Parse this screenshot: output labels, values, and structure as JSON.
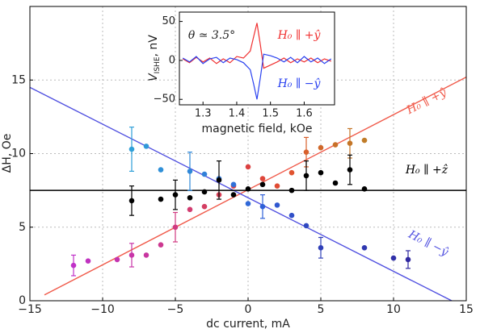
{
  "chart_data": [
    {
      "type": "scatter",
      "xlabel": "dc current, mA",
      "ylabel": "ΔH, Oe",
      "xlim": [
        -15,
        15
      ],
      "ylim": [
        0,
        20
      ],
      "xticks": [
        {
          "value": -15,
          "label": "−15"
        },
        {
          "value": -10,
          "label": "−10"
        },
        {
          "value": -5,
          "label": "−5"
        },
        0,
        5,
        10,
        15
      ],
      "yticks": [
        0,
        5,
        10,
        15
      ],
      "grid": true,
      "series": [
        {
          "name": "H₀ ∥ +ŷ",
          "color": "#f05a4a",
          "x": [
            -12,
            -11,
            -9,
            -8,
            -7,
            -6,
            -5,
            -4,
            -3,
            -2,
            -1,
            0,
            1,
            2,
            3,
            4,
            5,
            6,
            7,
            8
          ],
          "values": [
            2.4,
            2.7,
            2.8,
            3.1,
            3.1,
            3.8,
            5.0,
            6.2,
            6.4,
            7.2,
            7.8,
            9.1,
            8.3,
            7.8,
            8.7,
            10.1,
            10.4,
            10.6,
            10.7,
            10.9
          ],
          "errors": [
            0.7,
            null,
            null,
            0.8,
            null,
            null,
            1.0,
            null,
            null,
            null,
            null,
            null,
            null,
            null,
            null,
            1.0,
            null,
            null,
            1.0,
            null
          ],
          "colors": [
            "#c030c8",
            "#c032c0",
            "#c434b0",
            "#c835a8",
            "#c836a0",
            "#cc3890",
            "#d03a80",
            "#d23c70",
            "#d43e62",
            "#d84058",
            "#da424c",
            "#dc4040",
            "#de463a",
            "#e04c34",
            "#e05430",
            "#d8602c",
            "#d0682a",
            "#c87028",
            "#c47628",
            "#c07c28"
          ],
          "fit": {
            "x": [
              -14,
              15
            ],
            "values": [
              0.4,
              15.2
            ]
          }
        },
        {
          "name": "H₀ ∥ −ŷ",
          "color": "#5050e0",
          "x": [
            -8,
            -7,
            -6,
            -4,
            -3,
            -2,
            -1,
            0,
            1,
            2,
            3,
            4,
            5,
            8,
            10,
            11
          ],
          "values": [
            10.3,
            10.5,
            8.9,
            8.8,
            8.6,
            8.3,
            7.9,
            6.6,
            6.4,
            6.5,
            5.8,
            5.1,
            3.6,
            3.6,
            2.9,
            2.8
          ],
          "errors": [
            1.5,
            null,
            null,
            1.3,
            null,
            null,
            null,
            null,
            0.8,
            null,
            null,
            null,
            0.7,
            null,
            null,
            0.6
          ],
          "colors": [
            "#30a0d8",
            "#3098d8",
            "#3090d8",
            "#3088d8",
            "#3080d8",
            "#3078d8",
            "#3070d8",
            "#3068d8",
            "#3060d8",
            "#3058d0",
            "#3050c8",
            "#3048c0",
            "#3040b8",
            "#3038b0",
            "#3030a8",
            "#3028a0"
          ],
          "fit": {
            "x": [
              -15,
              14
            ],
            "values": [
              14.5,
              0
            ]
          }
        },
        {
          "name": "H₀ ∥ +ẑ",
          "color": "#000000",
          "x": [
            -8,
            -6,
            -5,
            -4,
            -3,
            -2,
            -1,
            0,
            1,
            3,
            4,
            5,
            6,
            7,
            8
          ],
          "values": [
            6.8,
            6.9,
            7.2,
            7.0,
            7.4,
            8.2,
            7.2,
            7.6,
            7.9,
            7.5,
            8.5,
            8.7,
            8.0,
            8.9,
            7.6
          ],
          "errors": [
            1.0,
            null,
            1.0,
            null,
            null,
            1.3,
            null,
            null,
            null,
            null,
            1.0,
            null,
            null,
            1.0,
            null
          ],
          "fit": {
            "x": [
              -15,
              15
            ],
            "values": [
              7.5,
              7.5
            ]
          }
        }
      ]
    },
    {
      "type": "line",
      "xlabel": "magnetic field, kOe",
      "ylabel": {
        "symbol": "V",
        "subscript": "ISHE",
        "unit": ", nV"
      },
      "annotation": "θ ≃ 3.5°",
      "xlim": [
        1.23,
        1.69
      ],
      "ylim": [
        -57,
        62
      ],
      "xticks": [
        1.3,
        1.4,
        1.5,
        1.6
      ],
      "yticks": [
        50,
        0,
        {
          "value": -50,
          "label": "−50"
        }
      ],
      "series": [
        {
          "name": "H₀ ∥ +ŷ",
          "color": "#f03030",
          "x": [
            1.24,
            1.26,
            1.28,
            1.3,
            1.32,
            1.34,
            1.36,
            1.38,
            1.4,
            1.42,
            1.44,
            1.45,
            1.46,
            1.47,
            1.48,
            1.5,
            1.52,
            1.54,
            1.56,
            1.58,
            1.6,
            1.62,
            1.64,
            1.66,
            1.68
          ],
          "values": [
            2,
            -3,
            4,
            -2,
            3,
            -4,
            2,
            -3,
            5,
            3,
            12,
            30,
            48,
            20,
            -10,
            -6,
            -2,
            3,
            -3,
            2,
            -2,
            3,
            -3,
            2,
            -1
          ]
        },
        {
          "name": "H₀ ∥ −ŷ",
          "color": "#2840f0",
          "x": [
            1.24,
            1.26,
            1.28,
            1.3,
            1.32,
            1.34,
            1.36,
            1.38,
            1.4,
            1.42,
            1.44,
            1.45,
            1.46,
            1.47,
            1.48,
            1.5,
            1.52,
            1.54,
            1.56,
            1.58,
            1.6,
            1.62,
            1.64,
            1.66,
            1.68
          ],
          "values": [
            3,
            -2,
            5,
            -4,
            2,
            4,
            -3,
            3,
            1,
            -3,
            -12,
            -30,
            -50,
            -22,
            8,
            6,
            3,
            -2,
            4,
            -3,
            5,
            -2,
            3,
            -4,
            2
          ]
        }
      ]
    }
  ]
}
